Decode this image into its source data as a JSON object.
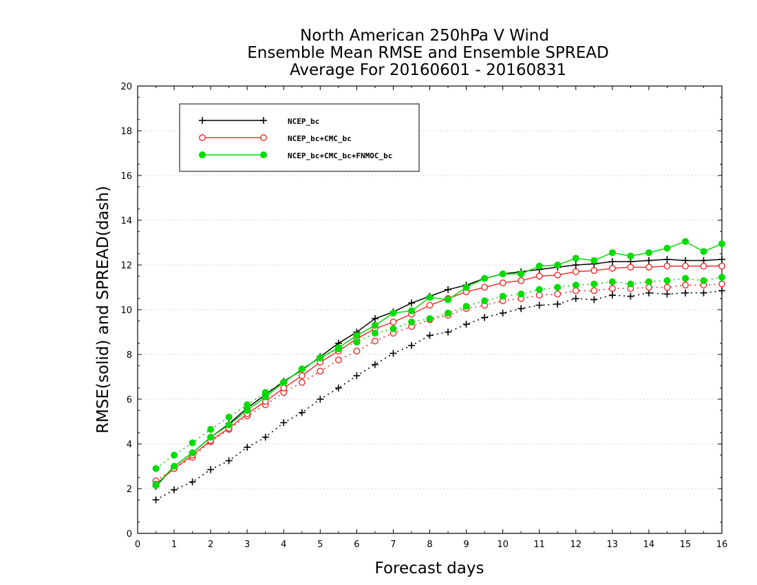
{
  "chart_data": {
    "type": "line",
    "title_lines": [
      "North American 250hPa V Wind",
      "Ensemble Mean RMSE and Ensemble SPREAD",
      "Average For 20160601 - 20160831"
    ],
    "xlabel": "Forecast days",
    "ylabel": "RMSE(solid) and SPREAD(dash)",
    "xlim": [
      0,
      16
    ],
    "ylim": [
      0,
      20
    ],
    "xticks": [
      0,
      1,
      2,
      3,
      4,
      5,
      6,
      7,
      8,
      9,
      10,
      11,
      12,
      13,
      14,
      15,
      16
    ],
    "yticks": [
      0,
      2,
      4,
      6,
      8,
      10,
      12,
      14,
      16,
      18,
      20
    ],
    "grid": "horizontal dotted",
    "legend_position": "top-left",
    "x": [
      0.5,
      1,
      1.5,
      2,
      2.5,
      3,
      3.5,
      4,
      4.5,
      5,
      5.5,
      6,
      6.5,
      7,
      7.5,
      8,
      8.5,
      9,
      9.5,
      10,
      10.5,
      11,
      11.5,
      12,
      12.5,
      13,
      13.5,
      14,
      14.5,
      15,
      15.5,
      16
    ],
    "series": [
      {
        "name": "NCEP_bc",
        "color": "#000000",
        "marker": "plus",
        "rmse": [
          2.1,
          3.0,
          3.6,
          4.3,
          4.9,
          5.6,
          6.2,
          6.8,
          7.3,
          7.9,
          8.5,
          9.0,
          9.6,
          9.9,
          10.3,
          10.6,
          10.9,
          11.1,
          11.4,
          11.6,
          11.7,
          11.8,
          11.9,
          12.0,
          12.05,
          12.15,
          12.15,
          12.2,
          12.25,
          12.2,
          12.2,
          12.25
        ],
        "spread": [
          1.5,
          1.95,
          2.3,
          2.85,
          3.25,
          3.85,
          4.3,
          4.95,
          5.4,
          6.0,
          6.5,
          7.05,
          7.55,
          8.05,
          8.4,
          8.85,
          9.0,
          9.35,
          9.65,
          9.85,
          10.05,
          10.2,
          10.25,
          10.5,
          10.45,
          10.65,
          10.6,
          10.75,
          10.7,
          10.75,
          10.75,
          10.85
        ]
      },
      {
        "name": "NCEP_bc+CMC_bc",
        "color": "#f03232",
        "marker": "open-circle",
        "rmse": [
          2.2,
          2.9,
          3.5,
          4.15,
          4.7,
          5.35,
          5.9,
          6.5,
          7.05,
          7.65,
          8.15,
          8.7,
          9.15,
          9.45,
          9.8,
          10.2,
          10.5,
          10.8,
          11.0,
          11.2,
          11.3,
          11.5,
          11.55,
          11.7,
          11.75,
          11.85,
          11.9,
          11.9,
          11.95,
          11.95,
          11.95,
          11.95
        ],
        "spread": [
          2.35,
          2.9,
          3.4,
          4.1,
          4.65,
          5.25,
          5.75,
          6.3,
          6.75,
          7.25,
          7.75,
          8.15,
          8.6,
          8.95,
          9.25,
          9.55,
          9.75,
          10.05,
          10.2,
          10.4,
          10.5,
          10.65,
          10.7,
          10.85,
          10.85,
          10.95,
          10.95,
          11.0,
          11.0,
          11.1,
          11.1,
          11.15
        ]
      },
      {
        "name": "NCEP_bc+CMC_bc+FNMOC_bc",
        "color": "#00dc00",
        "marker": "filled-circle",
        "rmse": [
          2.15,
          3.0,
          3.6,
          4.3,
          4.85,
          5.5,
          6.1,
          6.75,
          7.35,
          7.85,
          8.3,
          8.85,
          9.3,
          9.85,
          9.95,
          10.55,
          10.45,
          11.0,
          11.4,
          11.6,
          11.6,
          11.95,
          12.0,
          12.3,
          12.2,
          12.55,
          12.4,
          12.55,
          12.75,
          13.05,
          12.6,
          12.95
        ],
        "spread": [
          2.9,
          3.5,
          4.05,
          4.65,
          5.2,
          5.75,
          6.3,
          6.75,
          7.35,
          7.85,
          8.25,
          8.55,
          8.95,
          9.15,
          9.45,
          9.6,
          9.85,
          10.15,
          10.4,
          10.6,
          10.7,
          10.9,
          11.0,
          11.1,
          11.15,
          11.25,
          11.15,
          11.25,
          11.3,
          11.4,
          11.3,
          11.45
        ]
      }
    ]
  }
}
